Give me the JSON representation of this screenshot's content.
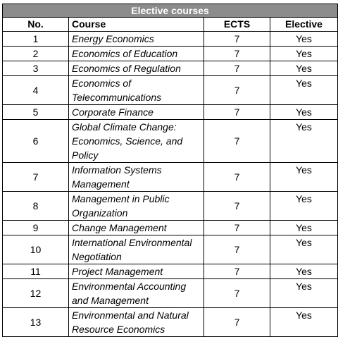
{
  "table": {
    "title": "Elective courses",
    "headers": {
      "no": "No.",
      "course": "Course",
      "ects": "ECTS",
      "elective": "Elective"
    },
    "rows": [
      {
        "no": "1",
        "course": "Energy Economics",
        "ects": "7",
        "elective": "Yes"
      },
      {
        "no": "2",
        "course": "Economics of Education",
        "ects": "7",
        "elective": "Yes"
      },
      {
        "no": "3",
        "course": "Economics of Regulation",
        "ects": "7",
        "elective": "Yes"
      },
      {
        "no": "4",
        "course": "Economics of Telecommunications",
        "ects": "7",
        "elective": "Yes"
      },
      {
        "no": "5",
        "course": "Corporate Finance",
        "ects": "7",
        "elective": "Yes"
      },
      {
        "no": "6",
        "course": "Global Climate Change: Economics, Science, and Policy",
        "ects": "7",
        "elective": "Yes"
      },
      {
        "no": "7",
        "course": "Information Systems Management",
        "ects": "7",
        "elective": "Yes"
      },
      {
        "no": "8",
        "course": "Management in Public Organization",
        "ects": "7",
        "elective": "Yes"
      },
      {
        "no": "9",
        "course": "Change Management",
        "ects": "7",
        "elective": "Yes"
      },
      {
        "no": "10",
        "course": "International Environmental Negotiation",
        "ects": "7",
        "elective": "Yes"
      },
      {
        "no": "11",
        "course": "Project Management",
        "ects": "7",
        "elective": "Yes"
      },
      {
        "no": "12",
        "course": "Environmental Accounting and Management",
        "ects": "7",
        "elective": "Yes"
      },
      {
        "no": "13",
        "course": "Environmental and Natural Resource Economics",
        "ects": "7",
        "elective": "Yes"
      }
    ]
  }
}
